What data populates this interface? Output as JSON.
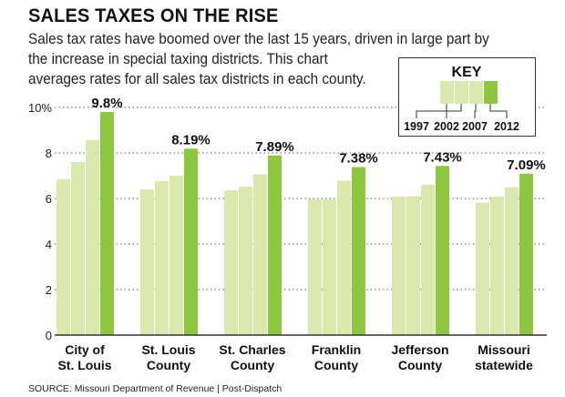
{
  "title": "SALES TAXES ON THE RISE",
  "subtitle": [
    "Sales tax rates have boomed over the last 15 years, driven in large part by",
    "the increase in special taxing districts. This chart",
    "averages rates for all sales tax districts in each county."
  ],
  "source": "SOURCE: Missouri Department of Revenue  |  Post-Dispatch",
  "key": {
    "title": "KEY",
    "labels": [
      "1997",
      "2002",
      "2007",
      "2012"
    ]
  },
  "colors": {
    "light": "#dbe8ad",
    "dark": "#8dc63f"
  },
  "chart_data": {
    "type": "bar",
    "categories": [
      [
        "City of",
        "St. Louis"
      ],
      [
        "St. Louis",
        "County"
      ],
      [
        "St. Charles",
        "County"
      ],
      [
        "Franklin",
        "County"
      ],
      [
        "Jefferson",
        "County"
      ],
      [
        "Missouri",
        "statewide"
      ]
    ],
    "series": [
      {
        "name": "1997",
        "values": [
          6.85,
          6.4,
          6.36,
          5.96,
          6.09,
          5.81
        ]
      },
      {
        "name": "2002",
        "values": [
          7.6,
          6.76,
          6.52,
          5.96,
          6.1,
          6.09
        ]
      },
      {
        "name": "2007",
        "values": [
          8.57,
          7.0,
          7.06,
          6.79,
          6.61,
          6.49
        ]
      },
      {
        "name": "2012",
        "values": [
          9.8,
          8.19,
          7.89,
          7.38,
          7.43,
          7.09
        ]
      }
    ],
    "data_labels": [
      "9.8%",
      "8.19%",
      "7.89%",
      "7.38%",
      "7.43%",
      "7.09%"
    ],
    "yticks": [
      "0",
      "2",
      "4",
      "6",
      "8",
      "10%"
    ],
    "ytick_values": [
      0,
      2,
      4,
      6,
      8,
      10
    ],
    "ylim": [
      0,
      10
    ],
    "grid": true,
    "legend": "top-right"
  }
}
